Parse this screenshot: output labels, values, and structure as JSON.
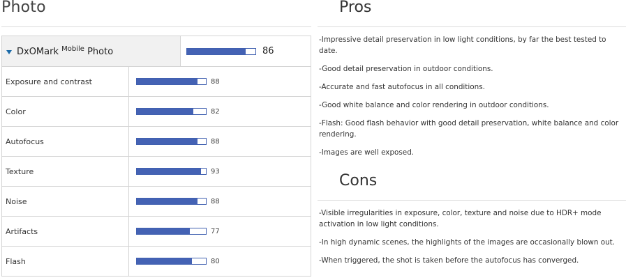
{
  "photo_section": {
    "title": "Photo",
    "overall": {
      "label_main": "DxOMark",
      "label_sup": "Mobile",
      "label_tail": "Photo",
      "score": "86",
      "fill_pct": 86,
      "bar_color": "#4462b4",
      "expand_icon": "caret-down-icon"
    },
    "subscores": [
      {
        "label": "Exposure and contrast",
        "score": "88",
        "fill_pct": 88
      },
      {
        "label": "Color",
        "score": "82",
        "fill_pct": 82
      },
      {
        "label": "Autofocus",
        "score": "88",
        "fill_pct": 88
      },
      {
        "label": "Texture",
        "score": "93",
        "fill_pct": 93
      },
      {
        "label": "Noise",
        "score": "88",
        "fill_pct": 88
      },
      {
        "label": "Artifacts",
        "score": "77",
        "fill_pct": 77
      },
      {
        "label": "Flash",
        "score": "80",
        "fill_pct": 80
      }
    ]
  },
  "pros": {
    "title": "Pros",
    "items": [
      "-Impressive detail preservation in low light conditions, by far the best tested to date.",
      "-Good detail preservation in outdoor conditions.",
      "-Accurate and fast autofocus in all conditions.",
      "-Good white balance and color rendering in outdoor conditions.",
      "-Flash: Good flash behavior with good detail preservation, white balance and color rendering.",
      "-Images are well exposed."
    ]
  },
  "cons": {
    "title": "Cons",
    "items": [
      "-Visible irregularities in exposure, color, texture and noise due to HDR+ mode activation in low light conditions.",
      "-In high dynamic scenes, the highlights of the images are occasionally blown out.",
      "-When triggered, the shot is taken before the autofocus has converged."
    ]
  }
}
